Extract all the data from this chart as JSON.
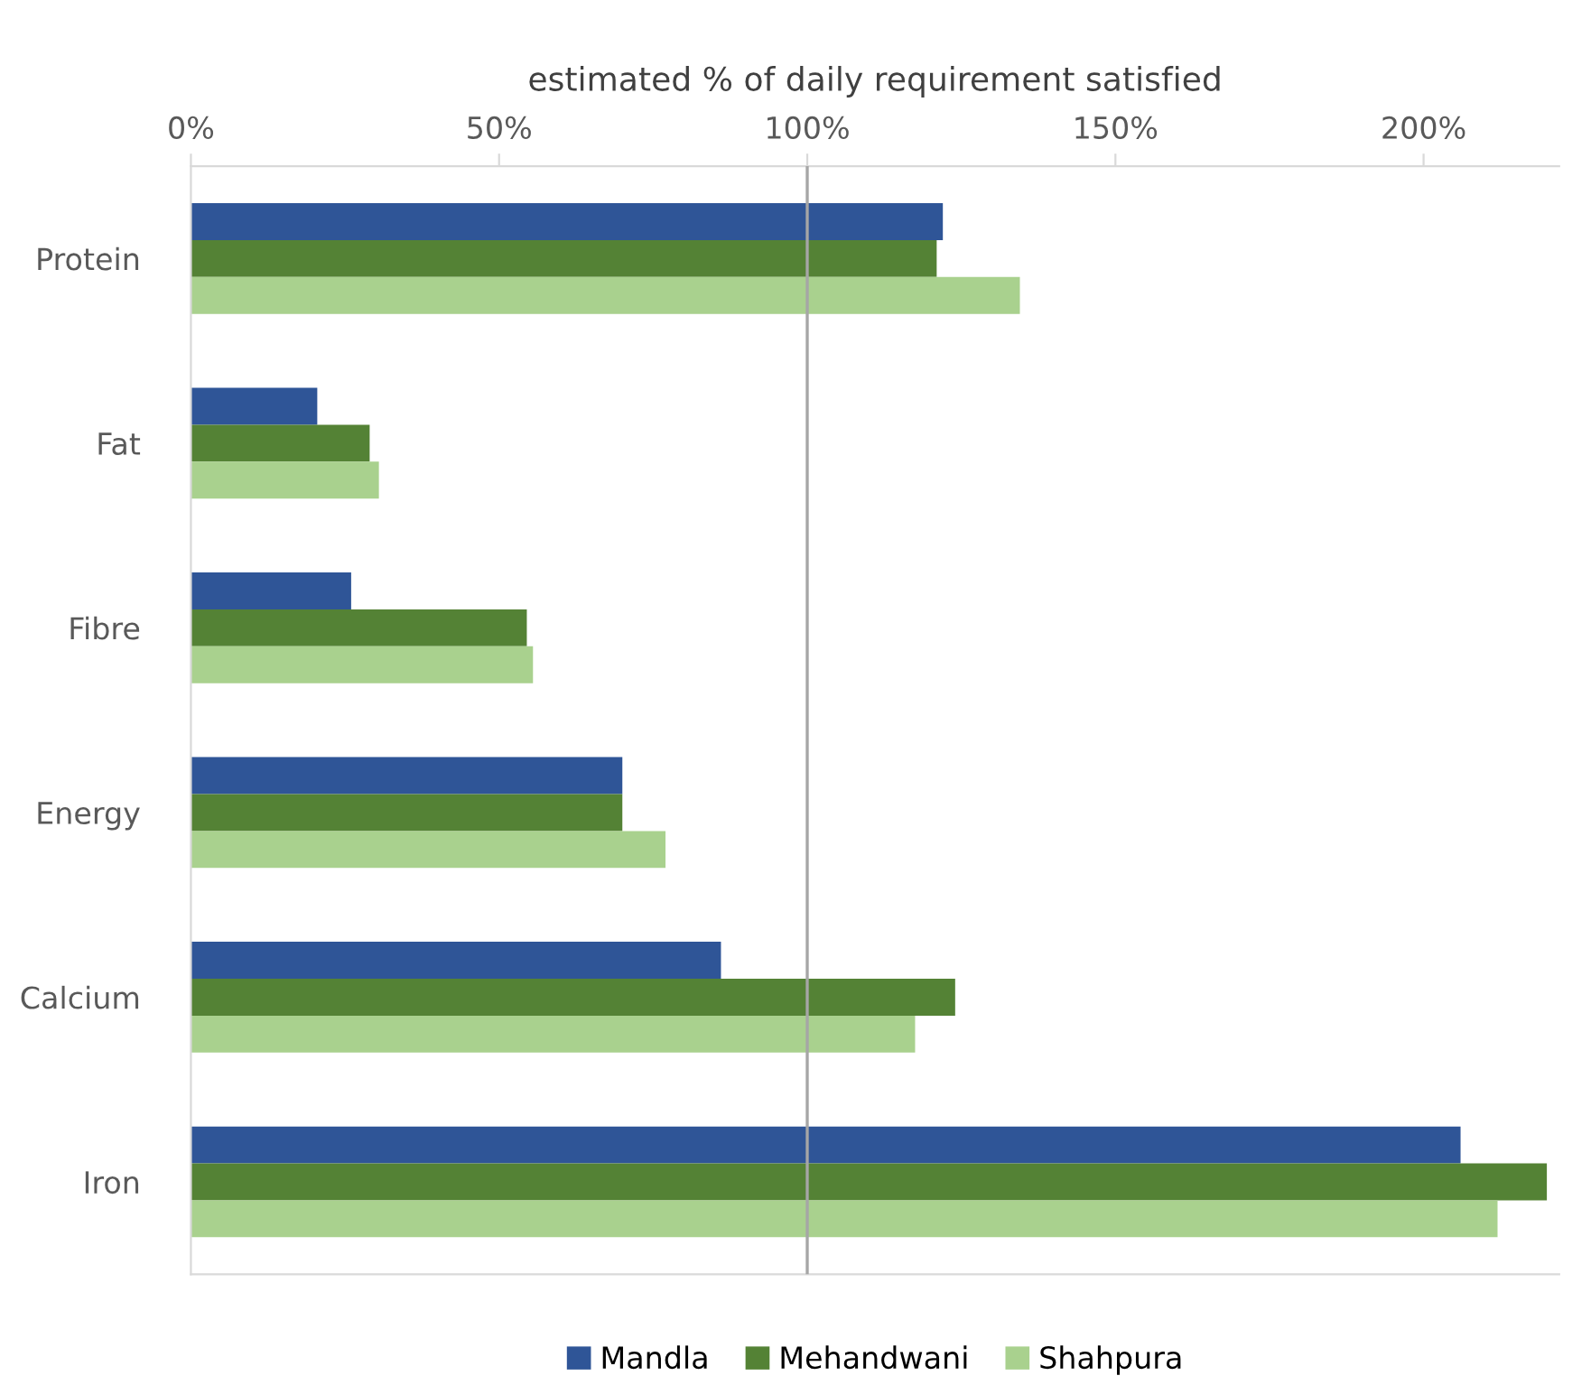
{
  "chart_data": {
    "type": "bar",
    "orientation": "horizontal",
    "xlabel": "estimated % of daily requirement satisfied",
    "categories": [
      "Protein",
      "Fat",
      "Fibre",
      "Energy",
      "Calcium",
      "Iron"
    ],
    "series": [
      {
        "name": "Mandla",
        "color": "#2f5597",
        "values": [
          122,
          20.5,
          26,
          70,
          86,
          206
        ]
      },
      {
        "name": "Mehandwani",
        "color": "#548235",
        "values": [
          121,
          29,
          54.5,
          70,
          124,
          220
        ]
      },
      {
        "name": "Shahpura",
        "color": "#a9d18e",
        "values": [
          134.5,
          30.5,
          55.5,
          77,
          117.5,
          212
        ]
      }
    ],
    "xlim": [
      0,
      222
    ],
    "xticks": [
      {
        "value": 0,
        "label": "0%"
      },
      {
        "value": 50,
        "label": "50%"
      },
      {
        "value": 100,
        "label": "100%"
      },
      {
        "value": 150,
        "label": "150%"
      },
      {
        "value": 200,
        "label": "200%"
      }
    ],
    "ref_lines": [
      {
        "axis": "x",
        "value": 100,
        "color": "#a6a6a6"
      }
    ],
    "grid": false,
    "legend": "bottom"
  }
}
